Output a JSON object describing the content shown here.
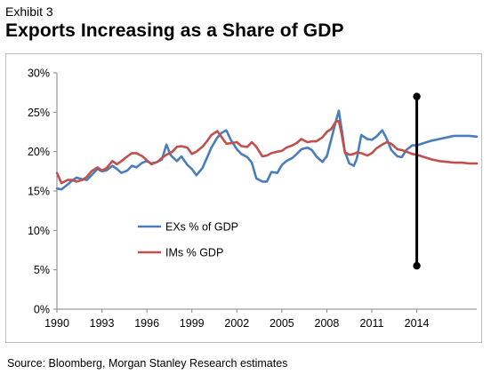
{
  "exhibit_label": "Exhibit 3",
  "source": "Source: Bloomberg, Morgan Stanley Research estimates",
  "chart_data": {
    "type": "line",
    "title": "Exports Increasing as a Share of GDP",
    "xlabel": "",
    "ylabel": "",
    "ylim": [
      0,
      30
    ],
    "xlim": [
      1990,
      2018
    ],
    "y_ticks": [
      "0%",
      "5%",
      "10%",
      "15%",
      "20%",
      "25%",
      "30%"
    ],
    "x_ticks": [
      "1990",
      "1993",
      "1996",
      "1999",
      "2002",
      "2005",
      "2008",
      "2011",
      "2014"
    ],
    "grid": false,
    "legend_position": "center-left",
    "series": [
      {
        "name": "EXs % of GDP",
        "color": "#4a7ebb",
        "x": [
          1990,
          1990.3,
          1990.7,
          1991,
          1991.3,
          1991.7,
          1992,
          1992.3,
          1992.7,
          1993,
          1993.3,
          1993.7,
          1994,
          1994.3,
          1994.7,
          1995,
          1995.3,
          1995.7,
          1996,
          1996.3,
          1996.7,
          1997,
          1997.3,
          1997.6,
          1998,
          1998.3,
          1998.7,
          1999,
          1999.3,
          1999.7,
          2000,
          2000.3,
          2000.7,
          2001,
          2001.3,
          2001.6,
          2002,
          2002.3,
          2002.7,
          2003,
          2003.3,
          2003.7,
          2004,
          2004.3,
          2004.7,
          2005,
          2005.3,
          2005.7,
          2006,
          2006.3,
          2006.7,
          2007,
          2007.3,
          2007.7,
          2008,
          2008.3,
          2008.6,
          2008.8,
          2009,
          2009.2,
          2009.5,
          2009.8,
          2010,
          2010.3,
          2010.7,
          2011,
          2011.3,
          2011.7,
          2012,
          2012.3,
          2012.7,
          2013,
          2013.3,
          2013.7,
          2014,
          2014.5,
          2015,
          2015.5,
          2016,
          2016.5,
          2017,
          2017.5,
          2018
        ],
        "y": [
          15.3,
          15.2,
          15.8,
          16.3,
          16.7,
          16.5,
          16.4,
          17.0,
          17.8,
          17.5,
          17.6,
          18.2,
          17.8,
          17.3,
          17.6,
          18.2,
          18.0,
          18.6,
          18.8,
          18.5,
          18.7,
          19.0,
          20.9,
          19.5,
          18.8,
          19.4,
          18.3,
          17.8,
          17.0,
          17.9,
          19.2,
          20.5,
          21.8,
          22.4,
          22.7,
          21.5,
          20.3,
          19.7,
          19.3,
          18.6,
          16.6,
          16.2,
          16.2,
          17.4,
          17.3,
          18.3,
          18.8,
          19.2,
          19.7,
          20.3,
          20.5,
          20.2,
          19.4,
          18.7,
          19.4,
          21.6,
          23.8,
          25.2,
          22.7,
          20.0,
          18.5,
          18.2,
          19.1,
          22.1,
          21.6,
          21.5,
          21.9,
          22.7,
          21.6,
          20.2,
          19.4,
          19.3,
          20.2,
          20.8,
          20.8,
          21.1,
          21.4,
          21.6,
          21.8,
          22.0,
          22.0,
          22.0,
          21.9
        ]
      },
      {
        "name": "IMs % GDP",
        "color": "#c0504d",
        "x": [
          1990,
          1990.3,
          1990.7,
          1991,
          1991.3,
          1991.7,
          1992,
          1992.3,
          1992.7,
          1993,
          1993.3,
          1993.7,
          1994,
          1994.3,
          1994.7,
          1995,
          1995.3,
          1995.7,
          1996,
          1996.3,
          1996.7,
          1997,
          1997.3,
          1997.7,
          1998,
          1998.3,
          1998.7,
          1999,
          1999.3,
          1999.7,
          2000,
          2000.3,
          2000.7,
          2001,
          2001.3,
          2001.7,
          2002,
          2002.3,
          2002.7,
          2003,
          2003.3,
          2003.7,
          2004,
          2004.3,
          2004.7,
          2005,
          2005.3,
          2005.7,
          2006,
          2006.3,
          2006.7,
          2007,
          2007.3,
          2007.7,
          2008,
          2008.3,
          2008.6,
          2008.8,
          2009,
          2009.2,
          2009.5,
          2009.8,
          2010,
          2010.3,
          2010.7,
          2011,
          2011.3,
          2011.7,
          2012,
          2012.3,
          2012.7,
          2013,
          2013.3,
          2013.7,
          2014,
          2014.5,
          2015,
          2015.5,
          2016,
          2016.5,
          2017,
          2017.5,
          2018
        ],
        "y": [
          17.3,
          16.0,
          16.4,
          16.4,
          16.2,
          16.4,
          16.8,
          17.5,
          18.0,
          17.6,
          17.9,
          18.8,
          18.4,
          18.8,
          19.4,
          19.8,
          19.8,
          19.4,
          18.9,
          18.4,
          18.7,
          19.2,
          19.6,
          20.0,
          20.6,
          20.7,
          20.5,
          19.7,
          20.0,
          20.6,
          21.3,
          22.1,
          22.6,
          21.8,
          21.0,
          21.1,
          21.2,
          20.7,
          20.6,
          21.2,
          20.6,
          19.4,
          19.5,
          19.8,
          20.0,
          20.1,
          20.5,
          20.8,
          21.1,
          21.6,
          21.2,
          21.3,
          21.3,
          21.8,
          22.5,
          22.9,
          23.8,
          23.9,
          22.1,
          19.9,
          19.6,
          19.7,
          19.9,
          19.8,
          19.5,
          19.8,
          20.4,
          20.9,
          21.2,
          21.0,
          20.3,
          20.2,
          20.0,
          19.7,
          19.6,
          19.3,
          19.0,
          18.8,
          18.7,
          18.6,
          18.6,
          18.5,
          18.5
        ]
      }
    ],
    "annotations": [
      {
        "type": "vertical-range-marker",
        "x": 2014,
        "y_start": 5.5,
        "y_end": 27.0,
        "color": "#000000"
      }
    ]
  }
}
